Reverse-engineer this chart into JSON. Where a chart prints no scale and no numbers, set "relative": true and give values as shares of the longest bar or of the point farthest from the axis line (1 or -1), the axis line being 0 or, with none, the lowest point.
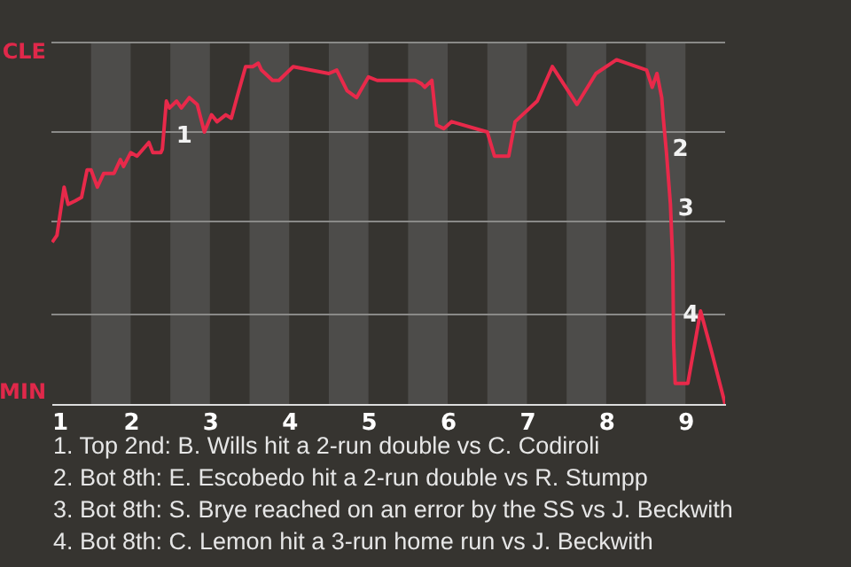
{
  "chart_data": {
    "type": "line",
    "relative": true,
    "x": [
      1.01,
      1.07,
      1.16,
      1.21,
      1.3,
      1.38,
      1.45,
      1.5,
      1.58,
      1.66,
      1.79,
      1.87,
      1.91,
      2,
      2.08,
      2.23,
      2.28,
      2.38,
      2.4,
      2.45,
      2.49,
      2.58,
      2.64,
      2.74,
      2.84,
      2.93,
      3.02,
      3.09,
      3.2,
      3.27,
      3.34,
      3.45,
      3.54,
      3.61,
      3.65,
      3.79,
      3.87,
      4.05,
      4.5,
      4.6,
      4.73,
      4.85,
      5,
      5.11,
      5.25,
      5.47,
      5.59,
      5.67,
      5.71,
      5.8,
      5.86,
      5.95,
      6.05,
      6.5,
      6.59,
      6.77,
      6.85,
      7.13,
      7.32,
      7.63,
      7.87,
      8.13,
      8.51,
      8.58,
      8.64,
      8.7,
      8.72,
      8.76,
      8.81,
      8.84,
      8.85,
      8.87,
      8.94,
      9.03,
      9.19,
      9.32,
      9.5
    ],
    "series": [
      {
        "color": "#e8294a",
        "values": [
          0.47,
          0.49,
          0.63,
          0.58,
          0.59,
          0.6,
          0.68,
          0.68,
          0.63,
          0.67,
          0.67,
          0.71,
          0.69,
          0.73,
          0.72,
          0.76,
          0.73,
          0.73,
          0.74,
          0.88,
          0.86,
          0.88,
          0.86,
          0.89,
          0.87,
          0.79,
          0.84,
          0.82,
          0.84,
          0.83,
          0.89,
          0.98,
          0.98,
          0.99,
          0.97,
          0.94,
          0.94,
          0.98,
          0.96,
          0.97,
          0.91,
          0.89,
          0.95,
          0.94,
          0.94,
          0.94,
          0.94,
          0.93,
          0.92,
          0.94,
          0.81,
          0.8,
          0.82,
          0.79,
          0.72,
          0.72,
          0.82,
          0.88,
          0.98,
          0.87,
          0.96,
          1,
          0.97,
          0.92,
          0.96,
          0.89,
          0.83,
          0.73,
          0.58,
          0.41,
          0.18,
          0.06,
          0.06,
          0.06,
          0.27,
          0.16,
          0
        ]
      }
    ],
    "xlim": [
      1,
      9.5
    ],
    "xticks": [
      1,
      2,
      3,
      4,
      5,
      6,
      7,
      8,
      9
    ],
    "ref_lines": [
      {
        "axis": "y",
        "value": 1.05,
        "label": "CLE",
        "color": "#8a8a88"
      },
      {
        "axis": "y",
        "value": 0.79,
        "color": "#8a8a88"
      },
      {
        "axis": "y",
        "value": 0.53,
        "color": "#8a8a88"
      },
      {
        "axis": "y",
        "value": 0.26,
        "color": "#8a8a88"
      }
    ],
    "bands": [
      {
        "axis": "x",
        "from": 1.5,
        "to": 2,
        "color": "#4d4c4a"
      },
      {
        "axis": "x",
        "from": 2.5,
        "to": 3,
        "color": "#4d4c4a"
      },
      {
        "axis": "x",
        "from": 3.5,
        "to": 4,
        "color": "#4d4c4a"
      },
      {
        "axis": "x",
        "from": 4.5,
        "to": 5,
        "color": "#4d4c4a"
      },
      {
        "axis": "x",
        "from": 5.5,
        "to": 6,
        "color": "#4d4c4a"
      },
      {
        "axis": "x",
        "from": 6.5,
        "to": 7,
        "color": "#4d4c4a"
      },
      {
        "axis": "x",
        "from": 7.5,
        "to": 8,
        "color": "#4d4c4a"
      },
      {
        "axis": "x",
        "from": 8.5,
        "to": 9,
        "color": "#4d4c4a"
      }
    ],
    "annotations": [
      "MIN",
      {
        "text": "1",
        "x": 2.53,
        "y": 0.78
      },
      {
        "text": "2",
        "x": 8.79,
        "y": 0.74
      },
      {
        "text": "3",
        "x": 8.86,
        "y": 0.57
      },
      {
        "text": "4",
        "x": 8.92,
        "y": 0.26
      },
      "1. Top 2nd: B. Wills hit a 2-run double vs C. Codiroli",
      "2. Bot 8th: E. Escobedo hit a 2-run double vs R. Stumpp",
      "3. Bot 8th: S. Brye reached on an error by the SS vs J. Beckwith",
      "4. Bot 8th: C. Lemon hit a 3-run home run vs J. Beckwith"
    ]
  }
}
